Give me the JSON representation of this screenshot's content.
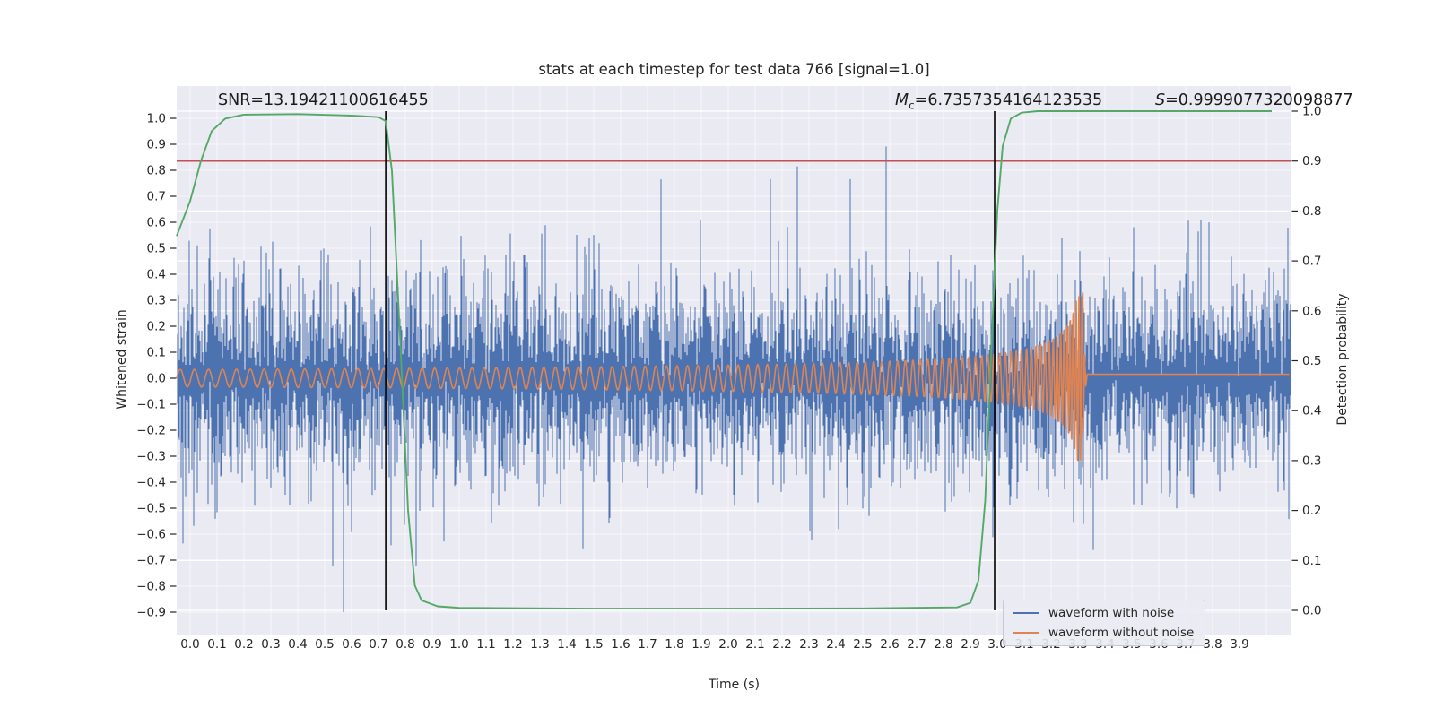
{
  "title": "stats at each timestep for test data 766 [signal=1.0]",
  "annotations": {
    "snr": "SNR=13.19421100616455",
    "mc_prefix": "M",
    "mc_sub": "c",
    "mc_value": "=6.7357354164123535",
    "s_prefix": "S",
    "s_value": "=0.9999077320098877"
  },
  "axes": {
    "x": {
      "label": "Time (s)",
      "tick_values": [
        0.0,
        0.1,
        0.2,
        0.3,
        0.4,
        0.5,
        0.6,
        0.7,
        0.8,
        0.9,
        1.0,
        1.1,
        1.2,
        1.3,
        1.4,
        1.5,
        1.6,
        1.7,
        1.8,
        1.9,
        2.0,
        2.1,
        2.2,
        2.3,
        2.4,
        2.5,
        2.6,
        2.7,
        2.8,
        2.9,
        3.0,
        3.1,
        3.2,
        3.3,
        3.4,
        3.5,
        3.6,
        3.7,
        3.8,
        3.9
      ],
      "tick_labels": [
        "0.0",
        "0.1",
        "0.2",
        "0.3",
        "0.4",
        "0.5",
        "0.6",
        "0.7",
        "0.8",
        "0.9",
        "1.0",
        "1.1",
        "1.2",
        "1.3",
        "1.4",
        "1.5",
        "1.6",
        "1.7",
        "1.8",
        "1.9",
        "2.0",
        "2.1",
        "2.2",
        "2.3",
        "2.4",
        "2.5",
        "2.6",
        "2.7",
        "2.8",
        "2.9",
        "3.0",
        "3.1",
        "3.2",
        "3.3",
        "3.4",
        "3.5",
        "3.6",
        "3.7",
        "3.8",
        "3.9"
      ],
      "range": [
        -0.05,
        4.09
      ]
    },
    "y_left": {
      "label": "Whitened strain",
      "tick_values": [
        1.0,
        0.9,
        0.8,
        0.7,
        0.6,
        0.5,
        0.4,
        0.3,
        0.2,
        0.1,
        0.0,
        -0.1,
        -0.2,
        -0.3,
        -0.4,
        -0.5,
        -0.6,
        -0.7,
        -0.8,
        -0.9
      ],
      "tick_labels": [
        "1.0",
        "0.9",
        "0.8",
        "0.7",
        "0.6",
        "0.5",
        "0.4",
        "0.3",
        "0.2",
        "0.1",
        "0.0",
        "−0.1",
        "−0.2",
        "−0.3",
        "−0.4",
        "−0.5",
        "−0.6",
        "−0.7",
        "−0.8",
        "−0.9"
      ],
      "range": [
        -0.99,
        1.12
      ]
    },
    "y_right": {
      "label": "Detection probability",
      "tick_values": [
        1.0,
        0.9,
        0.8,
        0.7,
        0.6,
        0.5,
        0.4,
        0.3,
        0.2,
        0.1,
        0.0
      ],
      "tick_labels": [
        "1.0",
        "0.9",
        "0.8",
        "0.7",
        "0.6",
        "0.5",
        "0.4",
        "0.3",
        "0.2",
        "0.1",
        "0.0"
      ],
      "range": [
        0.0,
        1.0
      ]
    }
  },
  "legend": {
    "items": [
      {
        "label": "waveform with noise",
        "color": "#4C72B0"
      },
      {
        "label": "waveform without noise",
        "color": "#DD8452"
      }
    ]
  },
  "colors": {
    "axes_background": "#EAEAF2",
    "grid": "#ffffff",
    "text": "#262626",
    "noise_blue": "#4C72B0",
    "signal_orange": "#DD8452",
    "probability_green": "#55A868",
    "threshold_red": "#C44E52",
    "event_line_black": "#000000"
  },
  "chart_data": {
    "type": "line",
    "x_unit": "seconds",
    "duration": 4.09,
    "series": [
      {
        "name": "waveform with noise",
        "axis": "left",
        "color": "#4C72B0",
        "kind": "noise_band",
        "description": "dense whitened gaussian noise, mean 0, typical band ±0.3, occasional spikes to ±0.9/+1.0",
        "seed": 20,
        "base": 0.05,
        "scale": 0.21,
        "spike_prob": 0.012,
        "spike_mult": 1.9,
        "gap_prob": 0.06,
        "gap_mult": 0.15,
        "cap_top": 1.0,
        "cap_bottom": 0.9
      },
      {
        "name": "waveform without noise",
        "axis": "left",
        "color": "#DD8452",
        "kind": "chirp",
        "description": "inspiral chirp: amplitude grows 0.034->0.33 and frequency rises until merger at t=3.318s, then flat",
        "t_start": -0.05,
        "t_merger": 3.318,
        "a0": 0.034,
        "a_exp": -0.45,
        "a_max": 0.33,
        "f0": 19,
        "f_exp": -0.38,
        "f_max": 90,
        "ringdown": [
          [
            3.32,
            -0.22
          ],
          [
            3.3245,
            0.09
          ],
          [
            3.329,
            -0.03
          ],
          [
            3.334,
            0.015
          ]
        ],
        "post_value": 0.015
      },
      {
        "name": "detection probability",
        "axis": "right",
        "color": "#55A868",
        "kind": "line",
        "points": [
          [
            -0.05,
            0.75
          ],
          [
            0.0,
            0.82
          ],
          [
            0.04,
            0.9
          ],
          [
            0.08,
            0.96
          ],
          [
            0.13,
            0.985
          ],
          [
            0.2,
            0.993
          ],
          [
            0.4,
            0.994
          ],
          [
            0.6,
            0.991
          ],
          [
            0.7,
            0.988
          ],
          [
            0.727,
            0.98
          ],
          [
            0.75,
            0.88
          ],
          [
            0.78,
            0.55
          ],
          [
            0.81,
            0.2
          ],
          [
            0.835,
            0.05
          ],
          [
            0.86,
            0.02
          ],
          [
            0.92,
            0.008
          ],
          [
            1.0,
            0.005
          ],
          [
            1.5,
            0.0035
          ],
          [
            2.0,
            0.0035
          ],
          [
            2.5,
            0.004
          ],
          [
            2.85,
            0.006
          ],
          [
            2.9,
            0.015
          ],
          [
            2.93,
            0.06
          ],
          [
            2.955,
            0.22
          ],
          [
            2.98,
            0.55
          ],
          [
            3.0,
            0.8
          ],
          [
            3.02,
            0.93
          ],
          [
            3.05,
            0.985
          ],
          [
            3.09,
            0.997
          ],
          [
            3.15,
            1.0
          ],
          [
            3.6,
            1.0
          ],
          [
            4.02,
            1.0
          ]
        ]
      },
      {
        "name": "detection threshold",
        "axis": "right",
        "color": "#C44E52",
        "kind": "hline",
        "y": 0.9
      },
      {
        "name": "event boundary lines",
        "axis": "right",
        "color": "#000000",
        "kind": "vlines",
        "x": [
          0.727,
          2.99
        ],
        "span": [
          0.0,
          1.0
        ]
      }
    ]
  }
}
